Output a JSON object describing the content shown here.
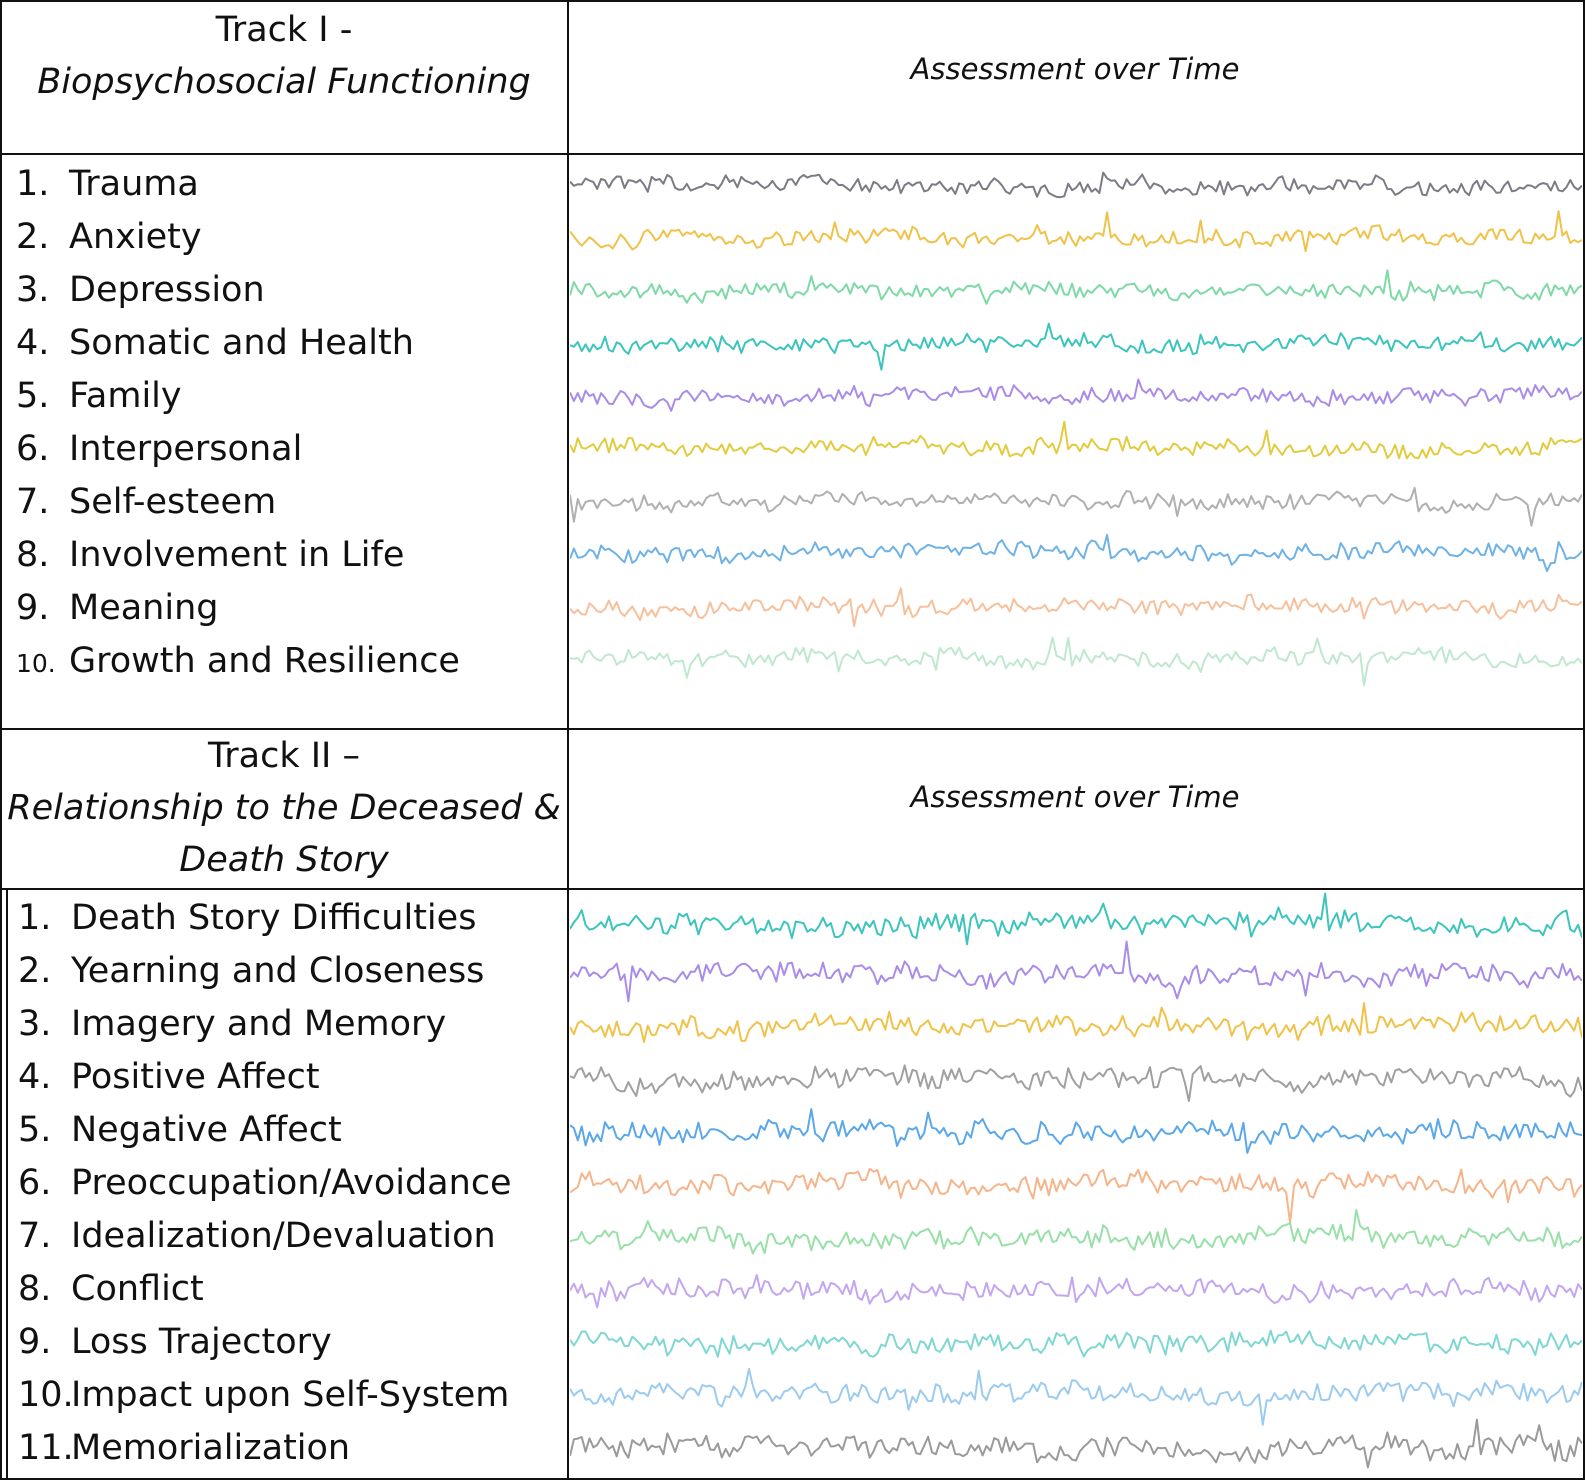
{
  "track1": {
    "title": "Track I -",
    "subtitle": "Biopsychosocial Functioning",
    "header_right": "Assessment over Time",
    "items": [
      {
        "num": "1.",
        "label": "Trauma",
        "color": "#7b7b85"
      },
      {
        "num": "2.",
        "label": "Anxiety",
        "color": "#f0c24a"
      },
      {
        "num": "3.",
        "label": "Depression",
        "color": "#7ed9a6"
      },
      {
        "num": "4.",
        "label": "Somatic and Health",
        "color": "#3cc4bd"
      },
      {
        "num": "5.",
        "label": "Family",
        "color": "#a98ce8"
      },
      {
        "num": "6.",
        "label": "Interpersonal",
        "color": "#e2cb3f"
      },
      {
        "num": "7.",
        "label": "Self-esteem",
        "color": "#b0b0b0"
      },
      {
        "num": "8.",
        "label": "Involvement in Life",
        "color": "#6fb2e6"
      },
      {
        "num": "9.",
        "label": "Meaning",
        "color": "#f6c09c"
      },
      {
        "num": "10.",
        "label": "Growth and Resilience",
        "color": "#bfe8cf"
      }
    ]
  },
  "track2": {
    "title": "Track II –",
    "subtitle_line1": "Relationship to the Deceased &",
    "subtitle_line2": "Death Story",
    "header_right": "Assessment over Time",
    "items": [
      {
        "num": "1.",
        "label": "Death Story Difficulties",
        "color": "#3cc4bd"
      },
      {
        "num": "2.",
        "label": "Yearning and Closeness",
        "color": "#a98ce8"
      },
      {
        "num": "3.",
        "label": "Imagery and Memory",
        "color": "#f0c24a"
      },
      {
        "num": "4.",
        "label": "Positive Affect",
        "color": "#a0a0a0"
      },
      {
        "num": "5.",
        "label": "Negative Affect",
        "color": "#5aa8ea"
      },
      {
        "num": "6.",
        "label": "Preoccupation/Avoidance",
        "color": "#f6b48a"
      },
      {
        "num": "7.",
        "label": "Idealization/Devaluation",
        "color": "#98e0a8"
      },
      {
        "num": "8.",
        "label": "Conflict",
        "color": "#c3a6f0"
      },
      {
        "num": "9.",
        "label": "Loss Trajectory",
        "color": "#7fd7d2"
      },
      {
        "num": "10.",
        "label": "Impact upon Self-System",
        "color": "#9ccbf0"
      },
      {
        "num": "11.",
        "label": "Memorialization",
        "color": "#9a9a9a"
      }
    ]
  }
}
